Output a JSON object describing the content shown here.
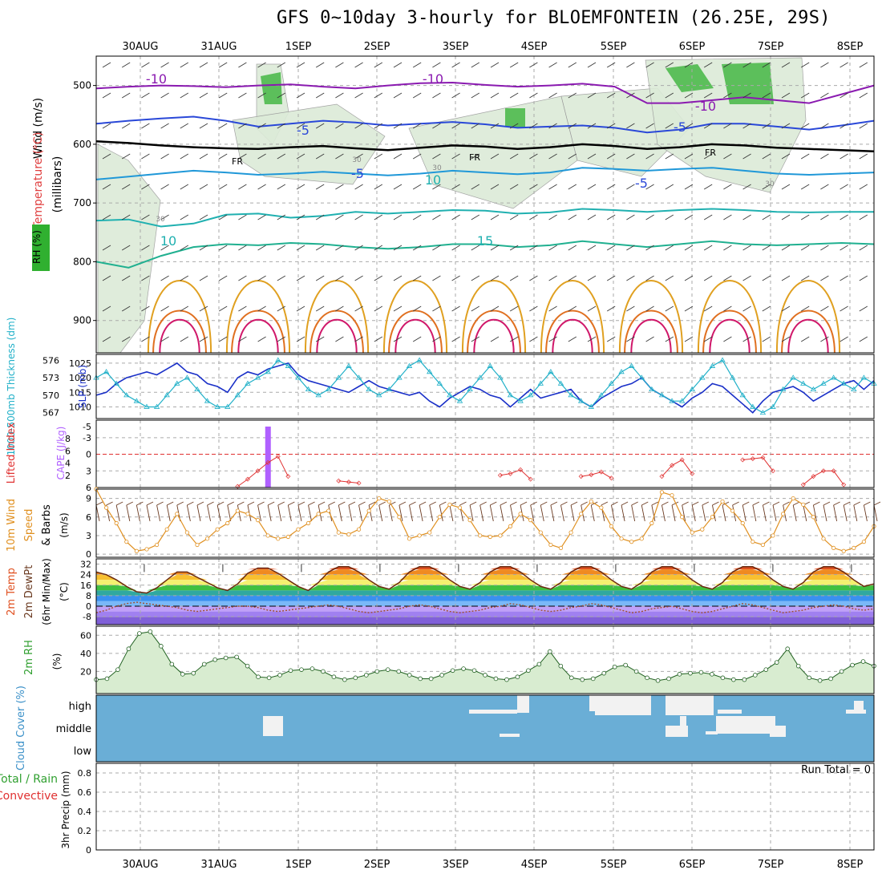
{
  "title": "GFS 0~10day 3-hourly for BLOEMFONTEIN (26.25E, 29S)",
  "colors": {
    "blue": "#2040c0",
    "cyan": "#20b0c8",
    "orange": "#e09020",
    "green": "#30b030",
    "purple": "#b060ff",
    "red": "#e03030",
    "cloud_bg": "#6aaed6",
    "cloud_gap": "#f2f2f2"
  },
  "chart_data": [
    {
      "type": "line",
      "panel": "upper_air",
      "title": "Temperature / RH / Wind cross-section",
      "ylabel_parts": [
        "RH (%)",
        "Temperature (°C)",
        "Wind (m/s)"
      ],
      "ylabel_unit": "(millibars)",
      "y_ticks": [
        500,
        600,
        700,
        800,
        900
      ],
      "ylim": [
        955,
        450
      ],
      "x_ticks": [
        "30AUG",
        "31AUG",
        "1SEP",
        "2SEP",
        "3SEP",
        "4SEP",
        "5SEP",
        "6SEP",
        "7SEP",
        "8SEP"
      ],
      "contour_labels": [
        "-10",
        "-10",
        "-10",
        "-5",
        "-5",
        "FR",
        "FR",
        "FR",
        "-5",
        "-5",
        "10",
        "15",
        "10",
        "30",
        "30",
        "30",
        "30"
      ],
      "isotherms": [
        {
          "label": "-10",
          "color": "#8a1ab0",
          "values": [
            505,
            502,
            500,
            501,
            503,
            500,
            498,
            502,
            505,
            500,
            496,
            495,
            499,
            502,
            500,
            497,
            502,
            530,
            530,
            525,
            520,
            525,
            530,
            515,
            500
          ]
        },
        {
          "label": "-5",
          "color": "#2a48d8",
          "values": [
            565,
            560,
            556,
            553,
            560,
            570,
            565,
            560,
            563,
            568,
            565,
            562,
            566,
            572,
            570,
            568,
            572,
            580,
            575,
            565,
            565,
            570,
            575,
            568,
            560
          ]
        },
        {
          "label": "FR",
          "color": "#000000",
          "values": [
            595,
            598,
            602,
            605,
            607,
            608,
            605,
            603,
            607,
            610,
            606,
            602,
            604,
            608,
            605,
            600,
            603,
            608,
            605,
            600,
            602,
            606,
            608,
            610,
            612
          ]
        },
        {
          "label": "5",
          "color": "#2098d8",
          "values": [
            660,
            655,
            650,
            645,
            648,
            652,
            650,
            647,
            650,
            653,
            650,
            645,
            648,
            651,
            648,
            640,
            642,
            645,
            642,
            640,
            645,
            650,
            652,
            650,
            648
          ]
        },
        {
          "label": "10",
          "color": "#20b0b0",
          "values": [
            730,
            728,
            740,
            735,
            720,
            718,
            725,
            722,
            715,
            718,
            715,
            712,
            713,
            718,
            716,
            710,
            712,
            715,
            712,
            710,
            712,
            715,
            716,
            715,
            715
          ]
        },
        {
          "label": "15",
          "color": "#20b090",
          "values": [
            800,
            810,
            790,
            775,
            770,
            772,
            768,
            770,
            775,
            778,
            775,
            770,
            770,
            775,
            772,
            765,
            770,
            775,
            770,
            765,
            770,
            772,
            770,
            768,
            770
          ]
        }
      ]
    },
    {
      "type": "line",
      "panel": "slp_thickness",
      "ylabel_left": "1000-500mb Thickness (dm)",
      "ylabel_right": "SLP (mb)",
      "left_ticks": [
        567,
        570,
        573,
        576
      ],
      "right_ticks": [
        1010,
        1015,
        1020,
        1025
      ],
      "series": [
        {
          "name": "SLP (mb)",
          "color": "#1a30c8",
          "values": [
            1014,
            1015,
            1018,
            1020,
            1021,
            1022,
            1021,
            1023,
            1025,
            1022,
            1021,
            1018,
            1017,
            1015,
            1020,
            1022,
            1021,
            1023,
            1024,
            1025,
            1021,
            1019,
            1018,
            1017,
            1016,
            1015,
            1017,
            1019,
            1017,
            1016,
            1015,
            1014,
            1015,
            1012,
            1010,
            1013,
            1015,
            1017,
            1016,
            1014,
            1013,
            1010,
            1013,
            1016,
            1013,
            1014,
            1015,
            1016,
            1012,
            1010,
            1013,
            1015,
            1017,
            1018,
            1020,
            1016,
            1014,
            1012,
            1010,
            1013,
            1015,
            1018,
            1017,
            1014,
            1011,
            1008,
            1012,
            1015,
            1016,
            1017,
            1015,
            1012,
            1014,
            1016,
            1018,
            1019,
            1016,
            1019
          ]
        },
        {
          "name": "1000-500mb Thickness (dm)",
          "color": "#20b0c8",
          "values": [
            573,
            574,
            572,
            570,
            569,
            568,
            568,
            570,
            572,
            573,
            571,
            569,
            568,
            568,
            570,
            572,
            573,
            574,
            576,
            575,
            573,
            571,
            570,
            571,
            573,
            575,
            573,
            571,
            570,
            571,
            573,
            575,
            576,
            574,
            572,
            570,
            569,
            571,
            573,
            575,
            573,
            570,
            569,
            570,
            572,
            574,
            572,
            570,
            569,
            568,
            570,
            572,
            574,
            575,
            573,
            571,
            570,
            569,
            569,
            571,
            573,
            575,
            576,
            573,
            570,
            568,
            567,
            568,
            571,
            573,
            572,
            571,
            572,
            573,
            572,
            571,
            573,
            572
          ]
        }
      ]
    },
    {
      "type": "bar",
      "panel": "cape_li",
      "ylabel": "CAPE (J/kg)",
      "ylabel_red": "Lifted Index",
      "left_ticks": [
        "2",
        "4",
        "6",
        "8"
      ],
      "right_ticks": [
        "6",
        "3",
        "0",
        "-3",
        "-5"
      ],
      "cape_bar": {
        "day": 1.62,
        "value": 10
      },
      "li_series": [
        null,
        null,
        null,
        null,
        null,
        null,
        null,
        null,
        null,
        null,
        null,
        null,
        null,
        null,
        5.8,
        4.5,
        3.0,
        1.5,
        0.4,
        4.0,
        null,
        null,
        null,
        null,
        4.8,
        5.0,
        5.2,
        null,
        null,
        null,
        null,
        null,
        null,
        null,
        null,
        null,
        null,
        null,
        null,
        null,
        3.8,
        3.5,
        2.8,
        4.5,
        null,
        null,
        null,
        null,
        4.0,
        3.7,
        3.2,
        4.3,
        null,
        null,
        null,
        null,
        4.0,
        2.0,
        1.0,
        3.5,
        null,
        null,
        null,
        null,
        1.0,
        0.8,
        0.6,
        3.0,
        null,
        null,
        5.5,
        4.0,
        3.0,
        3.0,
        5.5,
        null,
        null,
        null
      ]
    },
    {
      "type": "line",
      "panel": "wind10m",
      "ylabel": "10m Wind Speed & Barbs (m/s)",
      "y_ticks": [
        0,
        3,
        6,
        9
      ],
      "series": [
        {
          "name": "10m Wind Speed",
          "color": "#e09020",
          "values": [
            10.5,
            7.5,
            5.0,
            2.0,
            0.5,
            0.8,
            1.5,
            4.0,
            6.5,
            3.5,
            1.5,
            2.5,
            4.0,
            5.0,
            7.0,
            6.5,
            5.5,
            3.0,
            2.5,
            2.8,
            4.0,
            5.0,
            6.5,
            7.0,
            3.5,
            3.2,
            4.0,
            7.0,
            9.0,
            8.5,
            6.0,
            2.5,
            3.0,
            3.5,
            6.0,
            8.0,
            7.5,
            5.5,
            3.0,
            2.8,
            3.0,
            4.5,
            6.5,
            5.5,
            3.5,
            1.5,
            1.0,
            3.5,
            6.5,
            8.5,
            7.5,
            4.5,
            2.5,
            2.0,
            2.5,
            5.0,
            10.0,
            9.5,
            6.0,
            3.5,
            4.0,
            6.0,
            8.5,
            7.0,
            5.0,
            2.0,
            1.5,
            3.0,
            6.5,
            9.0,
            8.0,
            6.0,
            2.5,
            1.0,
            0.5,
            1.0,
            2.0,
            4.5
          ]
        }
      ]
    },
    {
      "type": "area",
      "panel": "temp2m",
      "ylabel": "2m Temp 2m DewPt (6hr Min/Max) (°C)",
      "y_ticks": [
        -8,
        0,
        8,
        16,
        24,
        32
      ],
      "series": [
        {
          "name": "2m Temp",
          "color": "#6b2a10",
          "values": [
            26,
            24,
            20,
            15,
            11,
            10,
            14,
            20,
            26,
            26,
            22,
            18,
            14,
            12,
            17,
            25,
            29,
            29,
            25,
            20,
            15,
            12,
            18,
            26,
            30,
            30,
            26,
            20,
            15,
            13,
            18,
            26,
            30,
            30,
            26,
            20,
            15,
            13,
            18,
            26,
            30,
            30,
            26,
            20,
            15,
            13,
            18,
            26,
            30,
            30,
            26,
            20,
            15,
            13,
            18,
            26,
            30,
            30,
            26,
            20,
            15,
            13,
            18,
            26,
            30,
            30,
            26,
            20,
            15,
            13,
            18,
            26,
            30,
            30,
            26,
            20,
            15,
            17
          ]
        },
        {
          "name": "2m DewPt",
          "color": "#a05030",
          "values": [
            -5,
            -3,
            0,
            2,
            3,
            2,
            1,
            0,
            -1,
            -3,
            -4,
            -3,
            -2,
            -1,
            0,
            0,
            -1,
            -3,
            -4,
            -3,
            -2,
            -1,
            0,
            1,
            0,
            -2,
            -4,
            -5,
            -4,
            -3,
            -2,
            0,
            1,
            0,
            -2,
            -4,
            -5,
            -4,
            -3,
            -1,
            0,
            2,
            1,
            -1,
            -3,
            -4,
            -3,
            -1,
            0,
            2,
            1,
            -1,
            -3,
            -5,
            -4,
            -2,
            -1,
            0,
            -2,
            -4,
            -5,
            -4,
            -2,
            0,
            2,
            1,
            -1,
            -3,
            -5,
            -4,
            -3,
            -1,
            0,
            1,
            0,
            -2,
            -3,
            -2
          ]
        }
      ]
    },
    {
      "type": "area",
      "panel": "rh2m",
      "ylabel": "2m RH (%)",
      "y_ticks": [
        20,
        40,
        60
      ],
      "series": [
        {
          "name": "2m RH",
          "color": "#30a030",
          "values": [
            11,
            12,
            22,
            45,
            62,
            64,
            48,
            28,
            17,
            18,
            28,
            33,
            35,
            36,
            26,
            14,
            13,
            16,
            21,
            22,
            23,
            20,
            14,
            11,
            13,
            16,
            20,
            22,
            20,
            16,
            12,
            12,
            16,
            21,
            23,
            21,
            16,
            12,
            11,
            14,
            21,
            28,
            42,
            26,
            13,
            11,
            12,
            18,
            25,
            27,
            20,
            13,
            10,
            12,
            17,
            18,
            19,
            17,
            13,
            11,
            11,
            16,
            22,
            30,
            45,
            26,
            13,
            10,
            12,
            20,
            27,
            31,
            26
          ]
        }
      ]
    },
    {
      "type": "heatmap",
      "panel": "cloud",
      "ylabel": "Cloud Cover (%)",
      "levels": [
        "high",
        "middle",
        "low"
      ]
    },
    {
      "type": "bar",
      "panel": "precip",
      "ylabel": "3hr Precip (mm)",
      "ylabel_green": "Total / Rain",
      "ylabel_red": "Convective",
      "y_ticks": [
        "0",
        "0.2",
        "0.4",
        "0.6",
        "0.8"
      ],
      "run_total": "Run Total = 0",
      "values": []
    }
  ]
}
